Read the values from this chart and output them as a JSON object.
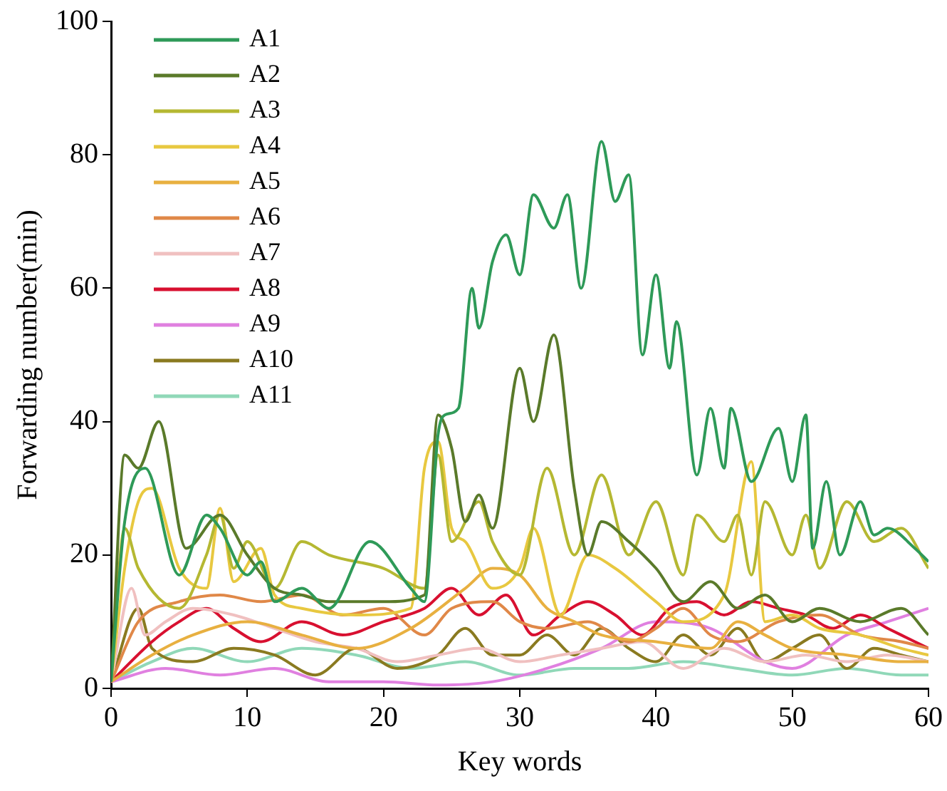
{
  "chart_data": {
    "type": "line",
    "xlabel": "Key words",
    "ylabel": "Forwarding number(min)",
    "xlim": [
      0,
      60
    ],
    "xticks": [
      0,
      10,
      20,
      30,
      40,
      50,
      60
    ],
    "ylim": [
      0,
      100
    ],
    "yticks": [
      0,
      20,
      40,
      60,
      80,
      100
    ],
    "grid": false,
    "legend": "top left",
    "marker": "none",
    "line_style": "solid",
    "series": [
      {
        "name": "A1",
        "color": "#2e9a58",
        "x": [
          0,
          1,
          2.5,
          5,
          7,
          8,
          10,
          11,
          12,
          14,
          16,
          19,
          22,
          23,
          24,
          24.5,
          25.5,
          26.5,
          27,
          28,
          29,
          30,
          31,
          32.5,
          33.5,
          34.5,
          36,
          37,
          38,
          39,
          40,
          41,
          41.5,
          43,
          44,
          45,
          45.5,
          47,
          49,
          50,
          51,
          51.5,
          52.5,
          53.5,
          55,
          56,
          57,
          59,
          60
        ],
        "values": [
          1,
          25,
          33,
          17,
          26,
          24,
          17,
          19,
          13,
          15,
          12,
          22,
          15,
          13,
          38,
          41,
          42,
          60,
          54,
          64,
          68,
          62,
          74,
          69,
          74,
          60,
          82,
          73,
          77,
          50,
          62,
          48,
          55,
          32,
          42,
          33,
          42,
          31,
          39,
          31,
          41,
          21,
          31,
          20,
          28,
          23,
          24,
          21,
          19
        ]
      },
      {
        "name": "A2",
        "color": "#5a7a2a",
        "x": [
          0,
          1,
          2,
          3.5,
          5.5,
          8,
          10,
          12,
          14,
          16,
          20,
          23,
          24,
          25,
          26,
          27,
          28,
          30,
          31,
          32.5,
          34,
          35,
          36,
          38,
          40,
          42,
          44,
          46,
          48,
          50,
          52,
          55,
          58,
          60
        ],
        "values": [
          1,
          35,
          33,
          40,
          21,
          26,
          20,
          15,
          14,
          13,
          13,
          14,
          41,
          36,
          25,
          29,
          24,
          48,
          40,
          53,
          30,
          20,
          25,
          22,
          18,
          13,
          16,
          12,
          14,
          10,
          12,
          10,
          12,
          8
        ]
      },
      {
        "name": "A3",
        "color": "#b5b832",
        "x": [
          0,
          1,
          2,
          5,
          7,
          8,
          9,
          10,
          12,
          14,
          16,
          20,
          23,
          24,
          25,
          27,
          28,
          30,
          32,
          34,
          36,
          38,
          40,
          42,
          43,
          45,
          46,
          47,
          48,
          50,
          51,
          52,
          54,
          56,
          58,
          60
        ],
        "values": [
          1,
          24,
          18,
          12,
          20,
          26,
          18,
          22,
          15,
          22,
          20,
          18,
          15,
          35,
          22,
          28,
          22,
          17,
          33,
          20,
          32,
          20,
          28,
          17,
          26,
          22,
          26,
          17,
          28,
          20,
          26,
          18,
          28,
          22,
          24,
          18
        ]
      },
      {
        "name": "A4",
        "color": "#e8c840",
        "x": [
          0,
          1,
          2,
          3,
          5,
          7,
          8,
          9,
          11,
          12,
          14,
          18,
          22,
          23,
          24,
          25,
          26,
          28,
          30,
          31,
          33,
          35,
          37,
          40,
          42,
          45,
          47,
          48,
          50,
          52,
          55,
          58,
          60
        ],
        "values": [
          1,
          18,
          28,
          30,
          18,
          15,
          27,
          16,
          21,
          14,
          12,
          11,
          12,
          33,
          37,
          24,
          22,
          15,
          18,
          24,
          11,
          20,
          18,
          13,
          10,
          14,
          34,
          10,
          11,
          9,
          8,
          6,
          5
        ]
      },
      {
        "name": "A5",
        "color": "#e8b040",
        "x": [
          0,
          3,
          6,
          10,
          14,
          18,
          22,
          26,
          28,
          30,
          32,
          34,
          36,
          40,
          44,
          46,
          48,
          50,
          54,
          58,
          60
        ],
        "values": [
          1,
          5,
          8,
          10,
          8,
          6,
          9,
          15,
          18,
          17,
          12,
          10,
          8,
          7,
          6,
          10,
          8,
          6,
          5,
          4,
          4
        ]
      },
      {
        "name": "A6",
        "color": "#e08848",
        "x": [
          0,
          2,
          5,
          8,
          11,
          14,
          17,
          20,
          23,
          25,
          28,
          30,
          32,
          35,
          38,
          40,
          42,
          44,
          46,
          49,
          52,
          55,
          58,
          60
        ],
        "values": [
          1,
          10,
          13,
          14,
          13,
          14,
          11,
          12,
          8,
          12,
          13,
          10,
          9,
          10,
          7,
          9,
          12,
          8,
          7,
          10,
          11,
          8,
          7,
          6
        ]
      },
      {
        "name": "A7",
        "color": "#f0c0c0",
        "x": [
          0,
          1.5,
          2.5,
          4,
          6,
          9,
          12,
          15,
          18,
          21,
          24,
          27,
          30,
          33,
          36,
          39,
          42,
          45,
          48,
          51,
          54,
          57,
          60
        ],
        "values": [
          1,
          15,
          8,
          10,
          12,
          11,
          9,
          7,
          6,
          4,
          5,
          6,
          4,
          5,
          6,
          7,
          3,
          6,
          4,
          5,
          4,
          5,
          4
        ]
      },
      {
        "name": "A8",
        "color": "#d81030",
        "x": [
          0,
          3,
          5,
          7,
          9,
          11,
          14,
          17,
          20,
          23,
          25,
          27,
          29,
          31,
          33,
          35,
          37,
          39,
          41,
          43,
          45,
          47,
          49,
          51,
          53,
          55,
          57,
          59,
          60
        ],
        "values": [
          1,
          7,
          10,
          12,
          9,
          7,
          10,
          8,
          10,
          12,
          15,
          11,
          14,
          8,
          11,
          13,
          11,
          8,
          12,
          13,
          11,
          13,
          12,
          11,
          9,
          11,
          9,
          7,
          6
        ]
      },
      {
        "name": "A9",
        "color": "#e080e0",
        "x": [
          0,
          4,
          8,
          12,
          16,
          20,
          24,
          28,
          32,
          36,
          40,
          44,
          48,
          50,
          54,
          57,
          60
        ],
        "values": [
          1,
          3,
          2,
          3,
          1,
          1,
          0.5,
          1,
          3,
          6,
          10,
          9,
          4,
          3,
          8,
          10,
          12
        ]
      },
      {
        "name": "A10",
        "color": "#8a7a20",
        "x": [
          0,
          2,
          3,
          6,
          9,
          12,
          15,
          18,
          21,
          24,
          26,
          28,
          30,
          32,
          34,
          36,
          38,
          40,
          42,
          44,
          46,
          48,
          50,
          52,
          54,
          56,
          58,
          60
        ],
        "values": [
          1,
          12,
          6,
          4,
          6,
          5,
          2,
          6,
          3,
          5,
          9,
          5,
          5,
          8,
          5,
          9,
          6,
          4,
          8,
          5,
          9,
          4,
          6,
          8,
          3,
          6,
          5,
          4
        ]
      },
      {
        "name": "A11",
        "color": "#90d8b8",
        "x": [
          0,
          3,
          6,
          10,
          14,
          18,
          22,
          26,
          30,
          34,
          38,
          42,
          46,
          50,
          54,
          58,
          60
        ],
        "values": [
          1,
          4,
          6,
          4,
          6,
          5,
          3,
          4,
          2,
          3,
          3,
          4,
          3,
          2,
          3,
          2,
          2
        ]
      }
    ]
  }
}
